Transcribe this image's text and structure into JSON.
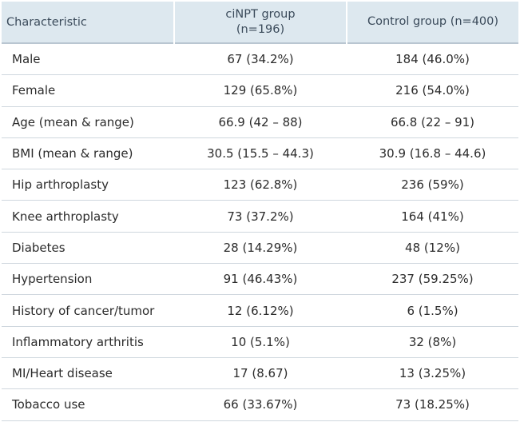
{
  "table": {
    "headers": {
      "characteristic": "Characteristic",
      "cinpt_line1": "ciNPT group",
      "cinpt_line2": "(n=196)",
      "control": "Control group (n=400)"
    },
    "rows": [
      {
        "label": "Male",
        "cinpt": "67 (34.2%)",
        "control": "184 (46.0%)"
      },
      {
        "label": "Female",
        "cinpt": "129 (65.8%)",
        "control": "216 (54.0%)"
      },
      {
        "label": "Age (mean & range)",
        "cinpt": "66.9 (42 – 88)",
        "control": "66.8 (22 – 91)"
      },
      {
        "label": "BMI (mean & range)",
        "cinpt": "30.5 (15.5 – 44.3)",
        "control": "30.9 (16.8 – 44.6)"
      },
      {
        "label": "Hip arthroplasty",
        "cinpt": "123 (62.8%)",
        "control": "236 (59%)"
      },
      {
        "label": "Knee arthroplasty",
        "cinpt": "73 (37.2%)",
        "control": "164 (41%)"
      },
      {
        "label": "Diabetes",
        "cinpt": "28 (14.29%)",
        "control": "48 (12%)"
      },
      {
        "label": "Hypertension",
        "cinpt": "91 (46.43%)",
        "control": "237 (59.25%)"
      },
      {
        "label": "History of cancer/tumor",
        "cinpt": "12 (6.12%)",
        "control": "6 (1.5%)"
      },
      {
        "label": "Inflammatory arthritis",
        "cinpt": "10 (5.1%)",
        "control": "32 (8%)"
      },
      {
        "label": "MI/Heart disease",
        "cinpt": "17 (8.67)",
        "control": "13 (3.25%)"
      },
      {
        "label": "Tobacco use",
        "cinpt": "66 (33.67%)",
        "control": "73 (18.25%)"
      }
    ]
  }
}
